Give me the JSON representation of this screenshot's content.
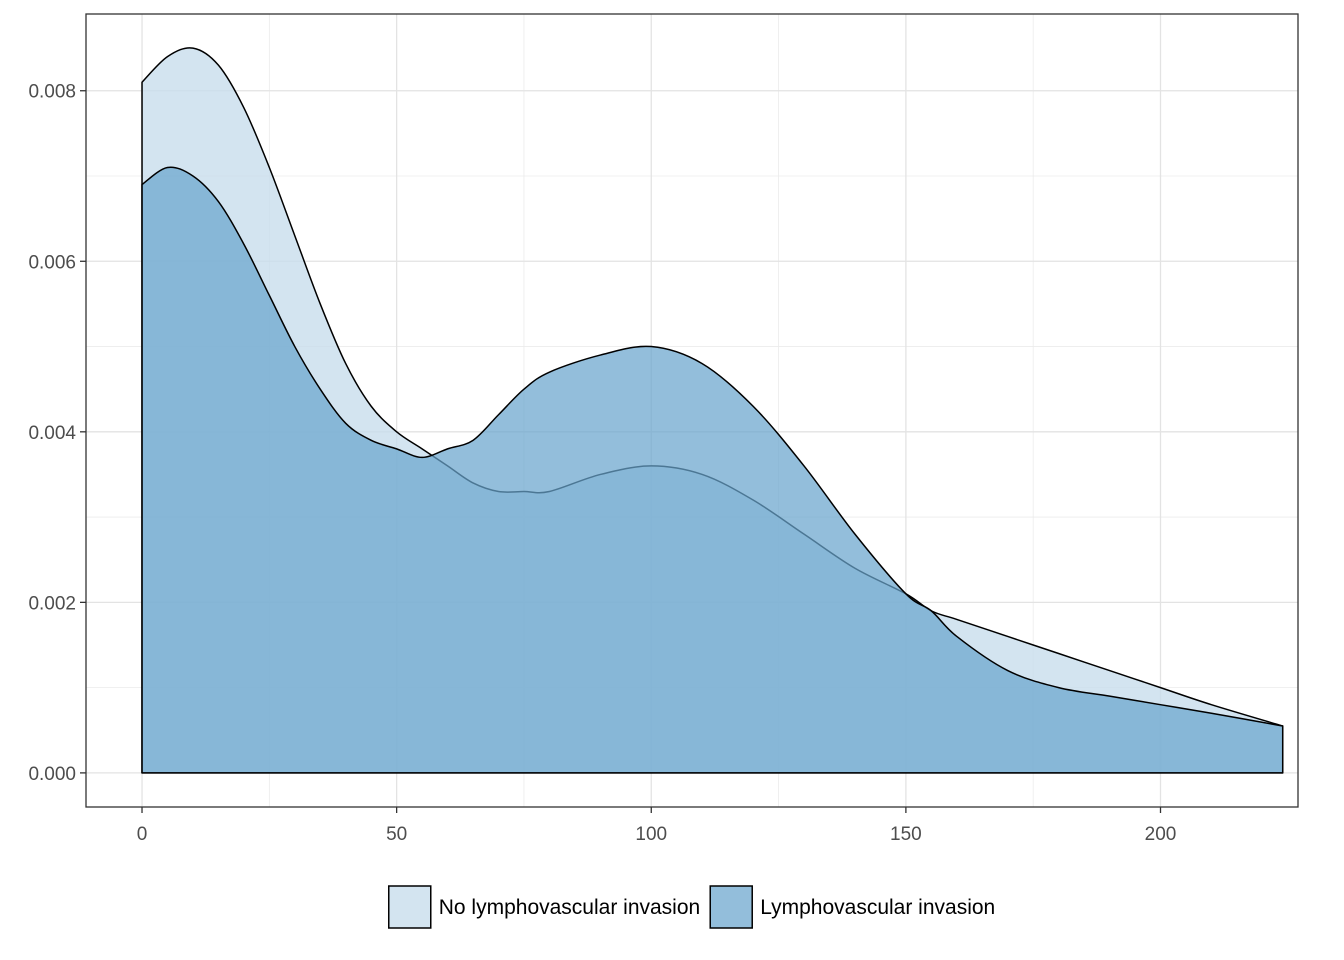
{
  "chart_data": {
    "type": "area",
    "title": "",
    "xlabel": "",
    "ylabel": "",
    "xlim": [
      -11,
      227
    ],
    "ylim": [
      -0.0004,
      0.0089
    ],
    "x_ticks": [
      0,
      50,
      100,
      150,
      200
    ],
    "x_tick_labels": [
      "0",
      "50",
      "100",
      "150",
      "200"
    ],
    "y_ticks": [
      0,
      0.002,
      0.004,
      0.006,
      0.008
    ],
    "y_tick_labels": [
      "0.000",
      "0.002",
      "0.004",
      "0.006",
      "0.008"
    ],
    "grid": true,
    "legend_position": "bottom",
    "series": [
      {
        "name": "No lymphovascular invasion",
        "color": "#c6dcec",
        "x": [
          0,
          5,
          10,
          15,
          20,
          25,
          30,
          35,
          40,
          45,
          50,
          55,
          60,
          65,
          70,
          75,
          80,
          90,
          100,
          110,
          120,
          130,
          140,
          150,
          155,
          160,
          170,
          180,
          190,
          200,
          210,
          224
        ],
        "values": [
          0.0081,
          0.0084,
          0.0085,
          0.0083,
          0.0078,
          0.0071,
          0.0063,
          0.0055,
          0.0048,
          0.0043,
          0.004,
          0.0038,
          0.0036,
          0.0034,
          0.0033,
          0.0033,
          0.0033,
          0.0035,
          0.0036,
          0.0035,
          0.0032,
          0.0028,
          0.0024,
          0.0021,
          0.0019,
          0.0018,
          0.0016,
          0.0014,
          0.0012,
          0.001,
          0.0008,
          0.00055
        ]
      },
      {
        "name": "Lymphovascular invasion",
        "color": "#6aa5cd",
        "x": [
          0,
          5,
          10,
          15,
          20,
          25,
          30,
          35,
          40,
          45,
          50,
          55,
          60,
          65,
          70,
          75,
          80,
          90,
          100,
          110,
          120,
          130,
          140,
          150,
          155,
          160,
          170,
          180,
          190,
          200,
          210,
          224
        ],
        "values": [
          0.0069,
          0.0071,
          0.007,
          0.0067,
          0.0062,
          0.0056,
          0.005,
          0.0045,
          0.0041,
          0.0039,
          0.0038,
          0.0037,
          0.0038,
          0.0039,
          0.0042,
          0.0045,
          0.0047,
          0.0049,
          0.005,
          0.0048,
          0.0043,
          0.0036,
          0.0028,
          0.0021,
          0.0019,
          0.0016,
          0.0012,
          0.001,
          0.0009,
          0.0008,
          0.0007,
          0.00055
        ]
      }
    ]
  }
}
